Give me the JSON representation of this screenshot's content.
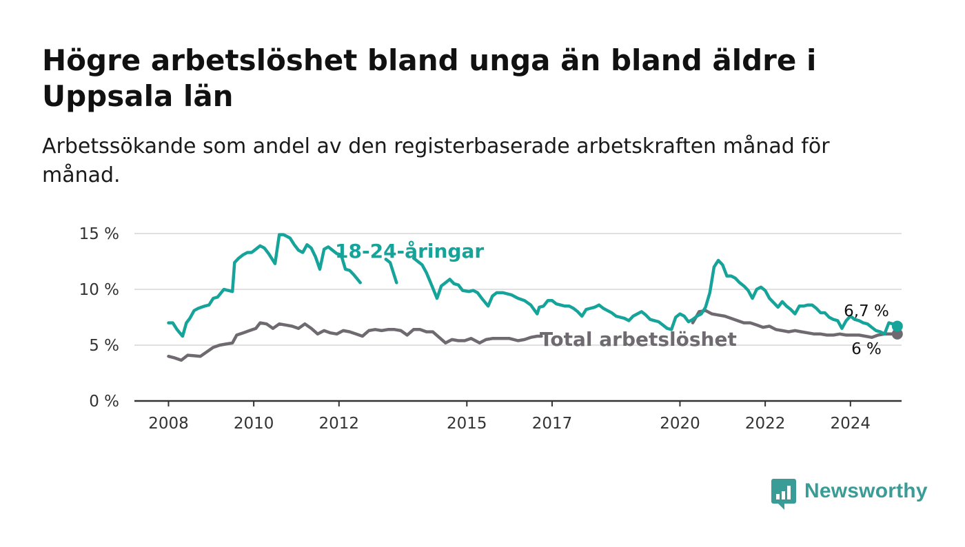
{
  "header": {
    "title": "Högre arbetslöshet bland unga än bland äldre i Uppsala län",
    "subtitle": "Arbetssökande som andel av den registerbaserade arbetskraften månad för månad."
  },
  "brand": {
    "name": "Newsworthy",
    "color": "#3a9c96",
    "icon": "bar-chart-icon"
  },
  "chart_data": {
    "type": "line",
    "title": "Högre arbetslöshet bland unga än bland äldre i Uppsala län",
    "subtitle": "Arbetssökande som andel av den registerbaserade arbetskraften månad för månad.",
    "ylim": [
      0,
      15
    ],
    "yticks": [
      {
        "value": 0,
        "label": "0 %"
      },
      {
        "value": 5,
        "label": "5 %"
      },
      {
        "value": 10,
        "label": "10 %"
      },
      {
        "value": 15,
        "label": "15 %"
      }
    ],
    "xlim": [
      2007.2,
      2025.2
    ],
    "xticks": [
      {
        "value": 2008,
        "label": "2008"
      },
      {
        "value": 2010,
        "label": "2010"
      },
      {
        "value": 2012,
        "label": "2012"
      },
      {
        "value": 2015,
        "label": "2015"
      },
      {
        "value": 2017,
        "label": "2017"
      },
      {
        "value": 2020,
        "label": "2020"
      },
      {
        "value": 2022,
        "label": "2022"
      },
      {
        "value": 2024,
        "label": "2024"
      }
    ],
    "grid": true,
    "series": [
      {
        "name": "18-24-åringar",
        "color": "#16a39a",
        "end_label": "6,7 %",
        "points": [
          [
            2008.0,
            7.0
          ],
          [
            2008.1,
            7.0
          ],
          [
            2008.2,
            6.4
          ],
          [
            2008.33,
            5.8
          ],
          [
            2008.42,
            7.0
          ],
          [
            2008.5,
            7.4
          ],
          [
            2008.6,
            8.1
          ],
          [
            2008.7,
            8.3
          ],
          [
            2008.85,
            8.5
          ],
          [
            2008.95,
            8.6
          ],
          [
            2009.05,
            9.2
          ],
          [
            2009.15,
            9.3
          ],
          [
            2009.3,
            10.0
          ],
          [
            2009.4,
            9.9
          ],
          [
            2009.5,
            9.8
          ],
          [
            2009.55,
            12.4
          ],
          [
            2009.65,
            12.8
          ],
          [
            2009.75,
            13.1
          ],
          [
            2009.85,
            13.3
          ],
          [
            2009.95,
            13.3
          ],
          [
            2010.05,
            13.6
          ],
          [
            2010.15,
            13.9
          ],
          [
            2010.25,
            13.7
          ],
          [
            2010.35,
            13.2
          ],
          [
            2010.5,
            12.3
          ],
          [
            2010.6,
            14.9
          ],
          [
            2010.7,
            14.9
          ],
          [
            2010.85,
            14.6
          ],
          [
            2010.95,
            14.0
          ],
          [
            2011.05,
            13.5
          ],
          [
            2011.15,
            13.3
          ],
          [
            2011.25,
            14.0
          ],
          [
            2011.35,
            13.7
          ],
          [
            2011.45,
            12.9
          ],
          [
            2011.55,
            11.8
          ],
          [
            2011.65,
            13.6
          ],
          [
            2011.75,
            13.8
          ],
          [
            2011.85,
            13.5
          ],
          [
            2011.95,
            13.2
          ],
          [
            2012.05,
            13.1
          ],
          [
            2012.15,
            11.8
          ],
          [
            2012.25,
            11.7
          ],
          [
            2012.35,
            11.3
          ],
          [
            2012.5,
            10.6
          ],
          [
            2012.55,
            null
          ],
          [
            2013.1,
            12.7
          ],
          [
            2013.2,
            12.4
          ],
          [
            2013.35,
            10.6
          ],
          [
            2013.4,
            null
          ],
          [
            2013.75,
            12.8
          ],
          [
            2013.85,
            12.5
          ],
          [
            2013.95,
            12.2
          ],
          [
            2014.05,
            11.5
          ],
          [
            2014.15,
            10.6
          ],
          [
            2014.3,
            9.2
          ],
          [
            2014.4,
            10.3
          ],
          [
            2014.5,
            10.6
          ],
          [
            2014.6,
            10.9
          ],
          [
            2014.7,
            10.5
          ],
          [
            2014.8,
            10.4
          ],
          [
            2014.9,
            9.9
          ],
          [
            2015.05,
            9.8
          ],
          [
            2015.15,
            9.9
          ],
          [
            2015.25,
            9.7
          ],
          [
            2015.35,
            9.2
          ],
          [
            2015.5,
            8.5
          ],
          [
            2015.6,
            9.4
          ],
          [
            2015.7,
            9.7
          ],
          [
            2015.85,
            9.7
          ],
          [
            2015.95,
            9.6
          ],
          [
            2016.05,
            9.5
          ],
          [
            2016.2,
            9.2
          ],
          [
            2016.35,
            9.0
          ],
          [
            2016.5,
            8.6
          ],
          [
            2016.65,
            7.8
          ],
          [
            2016.7,
            8.4
          ],
          [
            2016.8,
            8.5
          ],
          [
            2016.9,
            9.0
          ],
          [
            2017.0,
            9.0
          ],
          [
            2017.1,
            8.7
          ],
          [
            2017.2,
            8.6
          ],
          [
            2017.3,
            8.5
          ],
          [
            2017.4,
            8.5
          ],
          [
            2017.5,
            8.3
          ],
          [
            2017.6,
            8.0
          ],
          [
            2017.7,
            7.6
          ],
          [
            2017.8,
            8.2
          ],
          [
            2017.9,
            8.3
          ],
          [
            2018.0,
            8.4
          ],
          [
            2018.1,
            8.6
          ],
          [
            2018.2,
            8.3
          ],
          [
            2018.3,
            8.1
          ],
          [
            2018.4,
            7.9
          ],
          [
            2018.5,
            7.6
          ],
          [
            2018.6,
            7.5
          ],
          [
            2018.7,
            7.4
          ],
          [
            2018.8,
            7.2
          ],
          [
            2018.9,
            7.6
          ],
          [
            2019.0,
            7.8
          ],
          [
            2019.1,
            8.0
          ],
          [
            2019.2,
            7.7
          ],
          [
            2019.3,
            7.3
          ],
          [
            2019.4,
            7.2
          ],
          [
            2019.5,
            7.1
          ],
          [
            2019.6,
            6.8
          ],
          [
            2019.7,
            6.5
          ],
          [
            2019.8,
            6.4
          ],
          [
            2019.9,
            7.5
          ],
          [
            2020.0,
            7.8
          ],
          [
            2020.1,
            7.6
          ],
          [
            2020.2,
            7.1
          ],
          [
            2020.3,
            7.3
          ],
          [
            2020.4,
            7.6
          ],
          [
            2020.5,
            7.8
          ],
          [
            2020.6,
            8.4
          ],
          [
            2020.7,
            9.7
          ],
          [
            2020.8,
            12.0
          ],
          [
            2020.9,
            12.6
          ],
          [
            2021.0,
            12.2
          ],
          [
            2021.1,
            11.2
          ],
          [
            2021.2,
            11.2
          ],
          [
            2021.3,
            11.0
          ],
          [
            2021.4,
            10.6
          ],
          [
            2021.5,
            10.3
          ],
          [
            2021.6,
            9.9
          ],
          [
            2021.7,
            9.2
          ],
          [
            2021.8,
            10.0
          ],
          [
            2021.9,
            10.2
          ],
          [
            2022.0,
            9.9
          ],
          [
            2022.1,
            9.2
          ],
          [
            2022.2,
            8.8
          ],
          [
            2022.3,
            8.4
          ],
          [
            2022.4,
            8.9
          ],
          [
            2022.5,
            8.5
          ],
          [
            2022.6,
            8.2
          ],
          [
            2022.7,
            7.8
          ],
          [
            2022.8,
            8.5
          ],
          [
            2022.9,
            8.5
          ],
          [
            2023.0,
            8.6
          ],
          [
            2023.1,
            8.6
          ],
          [
            2023.2,
            8.3
          ],
          [
            2023.3,
            7.9
          ],
          [
            2023.4,
            7.9
          ],
          [
            2023.5,
            7.5
          ],
          [
            2023.6,
            7.3
          ],
          [
            2023.7,
            7.2
          ],
          [
            2023.8,
            6.5
          ],
          [
            2023.9,
            7.2
          ],
          [
            2024.0,
            7.6
          ],
          [
            2024.1,
            7.3
          ],
          [
            2024.2,
            7.2
          ],
          [
            2024.3,
            7.0
          ],
          [
            2024.4,
            6.9
          ],
          [
            2024.5,
            6.6
          ],
          [
            2024.6,
            6.3
          ],
          [
            2024.7,
            6.2
          ],
          [
            2024.8,
            6.0
          ],
          [
            2024.9,
            7.0
          ],
          [
            2025.0,
            6.9
          ],
          [
            2025.1,
            6.7
          ]
        ]
      },
      {
        "name": "Total arbetslöshet",
        "color": "#6e6a70",
        "end_label": "6 %",
        "points": [
          [
            2008.0,
            4.0
          ],
          [
            2008.15,
            3.85
          ],
          [
            2008.3,
            3.65
          ],
          [
            2008.45,
            4.1
          ],
          [
            2008.6,
            4.05
          ],
          [
            2008.75,
            4.0
          ],
          [
            2008.9,
            4.4
          ],
          [
            2009.05,
            4.8
          ],
          [
            2009.2,
            5.0
          ],
          [
            2009.35,
            5.1
          ],
          [
            2009.5,
            5.2
          ],
          [
            2009.6,
            5.9
          ],
          [
            2009.75,
            6.1
          ],
          [
            2009.9,
            6.3
          ],
          [
            2010.05,
            6.5
          ],
          [
            2010.15,
            7.0
          ],
          [
            2010.3,
            6.9
          ],
          [
            2010.45,
            6.5
          ],
          [
            2010.6,
            6.9
          ],
          [
            2010.75,
            6.8
          ],
          [
            2010.9,
            6.7
          ],
          [
            2011.05,
            6.5
          ],
          [
            2011.2,
            6.9
          ],
          [
            2011.35,
            6.5
          ],
          [
            2011.5,
            6.0
          ],
          [
            2011.65,
            6.3
          ],
          [
            2011.8,
            6.1
          ],
          [
            2011.95,
            6.0
          ],
          [
            2012.1,
            6.3
          ],
          [
            2012.25,
            6.2
          ],
          [
            2012.4,
            6.0
          ],
          [
            2012.55,
            5.8
          ],
          [
            2012.7,
            6.3
          ],
          [
            2012.85,
            6.4
          ],
          [
            2013.0,
            6.3
          ],
          [
            2013.15,
            6.4
          ],
          [
            2013.3,
            6.4
          ],
          [
            2013.45,
            6.3
          ],
          [
            2013.6,
            5.9
          ],
          [
            2013.75,
            6.4
          ],
          [
            2013.9,
            6.4
          ],
          [
            2014.05,
            6.2
          ],
          [
            2014.2,
            6.2
          ],
          [
            2014.35,
            5.7
          ],
          [
            2014.5,
            5.2
          ],
          [
            2014.65,
            5.5
          ],
          [
            2014.8,
            5.4
          ],
          [
            2014.95,
            5.4
          ],
          [
            2015.1,
            5.6
          ],
          [
            2015.3,
            5.2
          ],
          [
            2015.45,
            5.5
          ],
          [
            2015.6,
            5.6
          ],
          [
            2015.8,
            5.6
          ],
          [
            2016.0,
            5.6
          ],
          [
            2016.2,
            5.4
          ],
          [
            2016.35,
            5.5
          ],
          [
            2016.5,
            5.7
          ],
          [
            2016.65,
            5.8
          ],
          [
            2016.75,
            5.8
          ],
          [
            2016.8,
            null
          ],
          [
            2020.3,
            7.0
          ],
          [
            2020.45,
            8.0
          ],
          [
            2020.6,
            8.1
          ],
          [
            2020.75,
            7.8
          ],
          [
            2020.9,
            7.7
          ],
          [
            2021.05,
            7.6
          ],
          [
            2021.2,
            7.4
          ],
          [
            2021.35,
            7.2
          ],
          [
            2021.5,
            7.0
          ],
          [
            2021.65,
            7.0
          ],
          [
            2021.8,
            6.8
          ],
          [
            2021.95,
            6.6
          ],
          [
            2022.1,
            6.7
          ],
          [
            2022.25,
            6.4
          ],
          [
            2022.4,
            6.3
          ],
          [
            2022.55,
            6.2
          ],
          [
            2022.7,
            6.3
          ],
          [
            2022.85,
            6.2
          ],
          [
            2023.0,
            6.1
          ],
          [
            2023.15,
            6.0
          ],
          [
            2023.3,
            6.0
          ],
          [
            2023.45,
            5.9
          ],
          [
            2023.6,
            5.9
          ],
          [
            2023.75,
            6.0
          ],
          [
            2023.9,
            5.9
          ],
          [
            2024.05,
            5.9
          ],
          [
            2024.2,
            5.9
          ],
          [
            2024.35,
            5.8
          ],
          [
            2024.5,
            5.7
          ],
          [
            2024.65,
            5.9
          ],
          [
            2024.8,
            6.0
          ],
          [
            2024.95,
            6.0
          ],
          [
            2025.1,
            6.0
          ]
        ]
      }
    ]
  }
}
